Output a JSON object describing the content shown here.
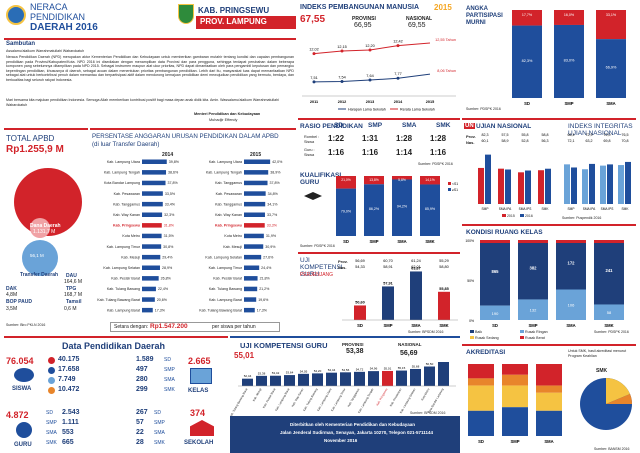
{
  "header": {
    "title_line1": "NERACA",
    "title_line2": "PENDIDIKAN",
    "title_line3": "DAERAH 2016",
    "kab": "KAB. PRINGSEWU",
    "prov": "PROV. LAMPUNG"
  },
  "sambutan": {
    "title": "Sambutan",
    "greeting": "Assalamu'alaikum Warrahmatullahi Wabarokatuh",
    "p1": "Neraca Pendidikan Daerah (NPD) merupakan aktor Kementerian Pendidikan dan Kebudayaan untuk memberikan gambaran mutahir tentang kondisi dan capaian pembangunan pendidikan pada Provinsi/Kabupaten/Kota. NPD 2016 ini disediakan dengan menampilkan data Provinsi dan para pengguna, sehingga terdapat perubahan dalam beberapa komponen yang sebelumnya ditampilkan pada NPD 2015. Sebagai instrumen maupun alat ukur prioritas, NPD dapat dimanfaatkan oleh para pengambil keputusan dan pemangku kepentingan pendidikan, khususnya di daerah, sebagai acuan dalam menentukan prioritas pembangunan pendidikan. Lebih dari itu, masyarakat luas dapat memanfaatkan NPD sebagai alat untuk berkontribusi penuh dalam memantau dan berpartisipasi aktif dalam mendorong kemajuan pendidikan demi mewujudkan pendidikan yang bermutu, berdaya, dan berkualitas bagi seluruh rakyat Indonesia.",
    "p2": "Mari bersama kita majukan pendidikan Indonesia. Semoga Allah memberikan kontribusi positif bagi masa depan anak didik kita. Amin. Wassalamu'alaikum Warrahmatullahi Wabarokatuh",
    "sign": "Menteri Pendidikan dan Kebudayaan",
    "name": "Muhadjir Effendy"
  },
  "total_apbd": {
    "title": "TOTAL APBD",
    "value": "Rp1.255,9 M",
    "dana_daerah_label": "Dana Daerah",
    "dana_daerah_value": "1.131,7 M",
    "transfer_label": "Transfer Daerah",
    "transfer_value": "56,1 M",
    "dak_label": "DAK",
    "dak_value": "4,8M",
    "dau_label": "DAU",
    "dau_value": "164,6 M",
    "bop_label": "BOP PAUD",
    "bop_value": "3,5M",
    "tpg_label": "TPG",
    "tpg_value": "168,7 M",
    "tamsil_label": "Tamsil",
    "tamsil_value": "0,6 M",
    "source": "Sumber: Biro PKLN 2016"
  },
  "persentase": {
    "title": "PERSENTASE ANGGARAN URUSAN PENDIDIKAN DALAM APBD",
    "subtitle": "(di luar Transfer Daerah)",
    "year_left": "2014",
    "year_right": "2015",
    "left_rows": [
      {
        "name": "Kab. Lampung Utara",
        "value": "39,8%"
      },
      {
        "name": "Kab. Lampung Tengah",
        "value": "38,6%"
      },
      {
        "name": "Kota Bandar Lampung",
        "value": "37,8%"
      },
      {
        "name": "Kab. Pesawaran",
        "value": "33,5%"
      },
      {
        "name": "Kab. Tanggamus",
        "value": "33,4%"
      },
      {
        "name": "Kab. Way Kanan",
        "value": "32,3%"
      },
      {
        "name": "Kab. Pringsewu",
        "value": "31,8%"
      },
      {
        "name": "Kota Metro",
        "value": "31,5%"
      },
      {
        "name": "Kab. Lampung Timur",
        "value": "30,8%"
      },
      {
        "name": "Kab. Mesuji",
        "value": "29,4%"
      },
      {
        "name": "Kab. Lampung Selatan",
        "value": "28,9%"
      },
      {
        "name": "Kab. Pesisir Barat",
        "value": "26,8%"
      },
      {
        "name": "Kab. Tulang Bawang",
        "value": "22,4%"
      },
      {
        "name": "Kab. Tulang Bawang Barat",
        "value": "20,6%"
      },
      {
        "name": "Kab. Lampung Barat",
        "value": "17,3%"
      }
    ],
    "right_rows": [
      {
        "name": "Kab. Lampung Utara",
        "value": "42,0%"
      },
      {
        "name": "Kab. Lampung Tengah",
        "value": "38,9%"
      },
      {
        "name": "Kab. Tanggamus",
        "value": "37,8%"
      },
      {
        "name": "Kab. Pesawaran",
        "value": "34,8%"
      },
      {
        "name": "Kab. Tanggamus",
        "value": "34,1%"
      },
      {
        "name": "Kab. Way Kanan",
        "value": "33,7%"
      },
      {
        "name": "Kab. Pringsewu",
        "value": "33,3%"
      },
      {
        "name": "Kota Metro",
        "value": "31,9%"
      },
      {
        "name": "Kab. Mesuji",
        "value": "30,9%"
      },
      {
        "name": "Kab. Lampung Selatan",
        "value": "27,6%"
      },
      {
        "name": "Kab. Lampung Timur",
        "value": "24,4%"
      },
      {
        "name": "Kab. Pesisir Barat",
        "value": "21,8%"
      },
      {
        "name": "Kab. Tulang Bawang",
        "value": "21,2%"
      },
      {
        "name": "Kab. Lampung Barat",
        "value": "19,6%"
      },
      {
        "name": "Kab. Tulang Bawang Barat",
        "value": "17,3%"
      }
    ],
    "setara_label": "Setara dengan:",
    "setara_value": "Rp1.547.200",
    "setara_unit": "per siswa per tahun"
  },
  "ipm": {
    "title": "INDEKS PEMBANGUNAN MANUSIA",
    "year": "2015",
    "kab_value": "67,55",
    "prov_label": "PROVINSI",
    "prov_value": "66,95",
    "nas_label": "NASIONAL",
    "nas_value": "69,55",
    "top_values": [
      "12,02",
      "12,15",
      "12,20",
      "12,42"
    ],
    "bottom_values": [
      "7,51",
      "7,54",
      "7,64",
      "7,77"
    ],
    "right_top": "12,55 Tahun",
    "right_bottom": "8,06 Tahun",
    "years": [
      "2011",
      "2012",
      "2013",
      "2014",
      "2015"
    ],
    "legend1": "Harapan Lama Sekolah",
    "legend2": "Rerata Lama Sekolah",
    "source": "Sumber: BPS 2016"
  },
  "apm": {
    "title": "ANGKA PARTISIPASI MURNI",
    "bars": [
      {
        "label": "SD",
        "value": "82,3%",
        "top": "17,7%"
      },
      {
        "label": "SMP",
        "value": "83,0%",
        "top": "16,0%"
      },
      {
        "label": "SMA",
        "value": "66,9%",
        "top": "33,1%"
      }
    ],
    "source": "Sumber: PDSPK 2016"
  },
  "rasio": {
    "title": "RASIO PENDIDIKAN",
    "row1_label": "Rombel : Siswa",
    "row2_label": "Guru : Siswa",
    "cols": [
      "SD",
      "SMP",
      "SMA",
      "SMK"
    ],
    "row1": [
      "1:22",
      "1:31",
      "1:28",
      "1:28"
    ],
    "row2": [
      "1:16",
      "1:16",
      "1:14",
      "1:16"
    ],
    "source": "Sumber: PDSPK 2016"
  },
  "kualifikasi": {
    "title": "KUALIFIKASI GURU",
    "bars": [
      {
        "label": "SD",
        "value": "79,0%",
        "top": "21,0%"
      },
      {
        "label": "SMP",
        "value": "86,2%",
        "top": "13,8%"
      },
      {
        "label": "SMA",
        "value": "94,2%",
        "top": "5,8%"
      },
      {
        "label": "SMK",
        "value": "85,9%",
        "top": "14,1%"
      }
    ],
    "legend1": "<S1",
    "legend2": "≥S1",
    "source": "Sumber: PDSPK 2016"
  },
  "ukg": {
    "title": "UJI KOMPETENSI GURU",
    "subtitle": "PERJENJANG",
    "prov_label": "Prov.",
    "nas_label": "Nas.",
    "prov_values": [
      "56,69",
      "60,70",
      "61,24",
      "55,29"
    ],
    "nas_values": [
      "54,33",
      "58,91",
      "62,01",
      "58,80"
    ],
    "kab_values": [
      "50,60",
      "57,91",
      "63,67",
      "55,85"
    ],
    "cols": [
      "SD",
      "SMP",
      "SMA",
      "SMK"
    ],
    "source": "Sumber: BPSDM 2016"
  },
  "un": {
    "title": "UJIAN NASIONAL",
    "mark": "UN",
    "prov_label": "Prov.",
    "nas_label": "Nas.",
    "prov_values": [
      "82,3",
      "57,5",
      "55,8",
      "58,8"
    ],
    "nas_values": [
      "60,1",
      "58,9",
      "52,8",
      "56,3"
    ],
    "cols": [
      "SMP",
      "SMA IPA",
      "SMA IPS",
      "SMK"
    ],
    "legend2015": "2015",
    "legend2016": "2016",
    "source": "Sumber: Puspendik 2016"
  },
  "iiun": {
    "title": "INDEKS INTEGRITAS UJIAN NASIONAL",
    "prov_values": [
      "66,4",
      "72,9",
      "72,0",
      "76,5"
    ],
    "nas_values": [
      "72,1",
      "63,2",
      "69,8",
      "70,8"
    ],
    "cols": [
      "SMP",
      "SMA IPA",
      "SMA IPS",
      "SMK"
    ]
  },
  "kondisi": {
    "title": "KONDISI RUANG KELAS",
    "cols": [
      "SD",
      "SMP",
      "SMA",
      "SMK"
    ],
    "legend": [
      "Baik",
      "Rusak Ringan",
      "Rusak Sedang",
      "Rusak Berat"
    ],
    "baik": [
      "865",
      "382",
      "172",
      "241"
    ],
    "rusak": [
      "190",
      "132",
      "106",
      "58"
    ],
    "source": "Sumber: PDSPK 2016"
  },
  "akreditasi": {
    "title": "AKREDITASI",
    "note": "Untuk SMK, hasil akreditasi menurut Program Keahlian",
    "smk_label": "SMK",
    "cols": [
      "SD",
      "SMP",
      "SMA"
    ],
    "source": "Sumber: BANSM 2016"
  },
  "dpd": {
    "title": "Data Pendidikan Daerah",
    "siswa_total": "76.054",
    "siswa_label": "SISWA",
    "siswa_rows": [
      {
        "k": "SD",
        "v": "40.175"
      },
      {
        "k": "SMP",
        "v": "17.658"
      },
      {
        "k": "SMA",
        "v": "7.749"
      },
      {
        "k": "SMK",
        "v": "10.472"
      }
    ],
    "kelas_total": "2.665",
    "kelas_label": "KELAS",
    "kelas_rows": [
      {
        "k": "SD",
        "v": "1.589"
      },
      {
        "k": "SMP",
        "v": "497"
      },
      {
        "k": "SMA",
        "v": "280"
      },
      {
        "k": "SMK",
        "v": "299"
      }
    ],
    "guru_total": "4.872",
    "guru_label": "GURU",
    "guru_rows": [
      {
        "k": "SD",
        "v": "2.543"
      },
      {
        "k": "SMP",
        "v": "1.111"
      },
      {
        "k": "SMA",
        "v": "553"
      },
      {
        "k": "SMK",
        "v": "665"
      }
    ],
    "sekolah_total": "374",
    "sekolah_label": "SEKOLAH",
    "sekolah_rows": [
      {
        "k": "SD",
        "v": "267"
      },
      {
        "k": "SMP",
        "v": "57"
      },
      {
        "k": "SMA",
        "v": "22"
      },
      {
        "k": "SMK",
        "v": "28"
      }
    ]
  },
  "ukg_daerah": {
    "title": "UJI KOMPETENSI GURU",
    "kab_value": "55,01",
    "prov_label": "PROVINSI",
    "prov_value": "53,38",
    "nas_label": "NASIONAL",
    "nas_value": "56,69",
    "values": [
      "52,44",
      "53,38",
      "53,42",
      "53,64",
      "54,05",
      "54,20",
      "54,44",
      "54,56",
      "54,72",
      "54,96",
      "55,01",
      "55,15",
      "55,68",
      "56,50",
      "58,84"
    ],
    "names": [
      "Kab. Tulang Bawang Barat",
      "Kab. Mesuji",
      "Kab. Pesisir Barat",
      "Kab. Lampung Barat",
      "Kab. Way Kanan",
      "Kab. Tulang Bawang",
      "Kab. Lampung Utara",
      "Kab. Lampung Timur",
      "Kab. Tanggamus",
      "Kab. Lampung Tengah",
      "Kab. Pringsewu",
      "Kab. Pesawaran",
      "Kab. Lampung Selatan",
      "Kota Metro",
      "Kota Bandar Lampung"
    ],
    "source": "Sumber: BPSDM 2016"
  },
  "footer": {
    "line1": "Diterbitkan oleh Kementerian Pendidikan dan Kebudayaan",
    "line2": "Jalan Jenderal Sudirman, Senayan, Jakarta 10270, Telepon 021-5711144",
    "line3": "November 2016"
  },
  "colors": {
    "red": "#d2232a",
    "blue": "#1f4e9c",
    "lightblue": "#6aa3d8",
    "navy": "#1f3f7a",
    "orange": "#e8852b",
    "yellow": "#f5c342"
  }
}
